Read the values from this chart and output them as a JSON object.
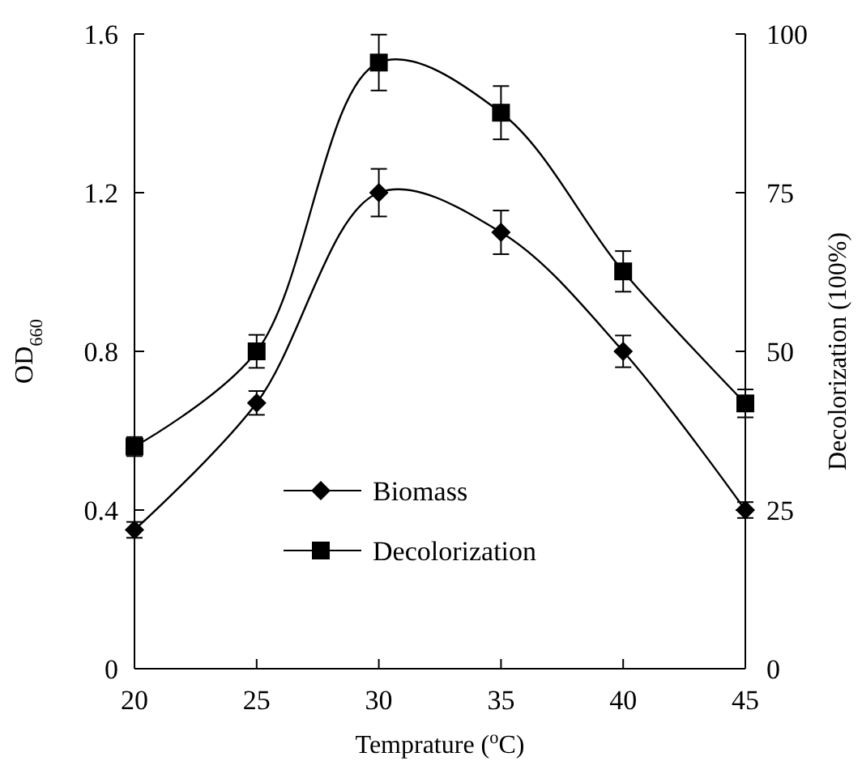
{
  "chart_data": {
    "type": "line",
    "xlabel": "Temprature ($^{o}$C)",
    "ylabel": "OD$_{660}$",
    "y2label": "Decolorization (100%)",
    "x": [
      20,
      25,
      30,
      35,
      40,
      45
    ],
    "xlim": [
      20,
      45
    ],
    "xticks": [
      20,
      25,
      30,
      35,
      40,
      45
    ],
    "ylim": [
      0,
      1.6
    ],
    "yticks": [
      0,
      0.4,
      0.8,
      1.2,
      1.6
    ],
    "y2lim": [
      0,
      100
    ],
    "y2ticks": [
      0,
      25,
      50,
      75,
      100
    ],
    "grid": false,
    "legend": "center left",
    "line_style": "solid",
    "series": [
      {
        "name": "Biomass",
        "color": "#000000",
        "marker": "diamond",
        "values": [
          0.35,
          0.67,
          1.2,
          1.1,
          0.8,
          0.4
        ],
        "errors": [
          0.02,
          0.03,
          0.06,
          0.055,
          0.04,
          0.02
        ]
      },
      {
        "name": "Decolorization",
        "color": "#000000",
        "marker": "square",
        "axis": "y2",
        "values": [
          35,
          50,
          95.5,
          87.6,
          62.6,
          41.8
        ],
        "errors": [
          1.5,
          2.6,
          4.4,
          4.2,
          3.2,
          2.2
        ]
      }
    ]
  }
}
